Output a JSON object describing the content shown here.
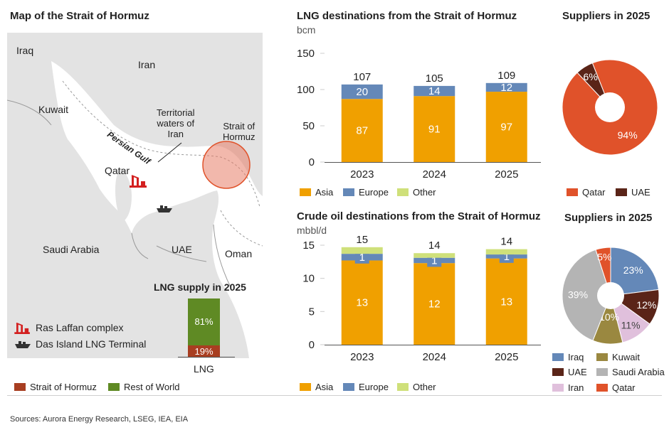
{
  "map": {
    "title": "Map of the Strait of Hormuz",
    "labels": {
      "iraq": "Iraq",
      "iran": "Iran",
      "kuwait": "Kuwait",
      "territorial": "Territorial\nwaters of\nIran",
      "strait": "Strait of\nHormuz",
      "gulf": "Persian Gulf",
      "qatar": "Qatar",
      "saudi": "Saudi Arabia",
      "uae": "UAE",
      "oman": "Oman"
    },
    "legend": {
      "ras_laffan": "Ras Laffan complex",
      "das_island": "Das Island LNG Terminal"
    }
  },
  "lng_supply": {
    "title": "LNG supply in 2025",
    "category": "LNG",
    "segments": [
      {
        "name": "Rest of World",
        "label": "81%",
        "value": 81,
        "color": "#5f8a24"
      },
      {
        "name": "Strait of Hormuz",
        "label": "19%",
        "value": 19,
        "color": "#a83e21"
      }
    ],
    "legend": [
      {
        "label": "Strait of Hormuz",
        "color": "#a83e21"
      },
      {
        "label": "Rest of World",
        "color": "#5f8a24"
      }
    ]
  },
  "chart_data": [
    {
      "id": "lng",
      "type": "bar",
      "title": "LNG destinations from the Strait of Hormuz",
      "unit": "bcm",
      "categories": [
        "2023",
        "2024",
        "2025"
      ],
      "yticks": [
        0,
        50,
        100,
        150
      ],
      "ylim": [
        0,
        150
      ],
      "totals": [
        107,
        105,
        109
      ],
      "series": [
        {
          "name": "Asia",
          "color": "#f0a000",
          "values": [
            87,
            91,
            97
          ],
          "labels": [
            "87",
            "91",
            "97"
          ]
        },
        {
          "name": "Europe",
          "color": "#6488b8",
          "values": [
            20,
            14,
            12
          ],
          "labels": [
            "20",
            "14",
            "12"
          ]
        },
        {
          "name": "Other",
          "color": "#cfe07a",
          "values": [
            0,
            0,
            0
          ],
          "labels": [
            "",
            "",
            ""
          ]
        }
      ]
    },
    {
      "id": "crude",
      "type": "bar",
      "title": "Crude oil destinations from the Strait of Hormuz",
      "unit": "mbbl/d",
      "categories": [
        "2023",
        "2024",
        "2025"
      ],
      "yticks": [
        0,
        5,
        10,
        15
      ],
      "ylim": [
        0,
        15
      ],
      "totals": [
        15,
        14,
        14
      ],
      "series": [
        {
          "name": "Asia",
          "color": "#f0a000",
          "values": [
            12.7,
            12.3,
            13.0
          ],
          "labels": [
            "13",
            "12",
            "13"
          ]
        },
        {
          "name": "Europe",
          "color": "#6488b8",
          "values": [
            1.0,
            0.8,
            0.6
          ],
          "labels": [
            "1",
            "1",
            "1"
          ]
        },
        {
          "name": "Other",
          "color": "#cfe07a",
          "values": [
            1.0,
            0.7,
            0.8
          ],
          "labels": [
            "",
            "",
            ""
          ]
        }
      ]
    },
    {
      "id": "lng_suppliers",
      "type": "pie",
      "title": "Suppliers in 2025",
      "slices": [
        {
          "name": "Qatar",
          "value": 94,
          "label": "94%",
          "color": "#e0522a"
        },
        {
          "name": "UAE",
          "value": 6,
          "label": "6%",
          "color": "#5a2418"
        }
      ]
    },
    {
      "id": "crude_suppliers",
      "type": "pie",
      "title": "Suppliers in 2025",
      "slices": [
        {
          "name": "Iraq",
          "value": 23,
          "label": "23%",
          "color": "#6488b8"
        },
        {
          "name": "UAE",
          "value": 12,
          "label": "12%",
          "color": "#5a2418"
        },
        {
          "name": "Iran",
          "value": 11,
          "label": "11%",
          "color": "#e0c0dc"
        },
        {
          "name": "Kuwait",
          "value": 10,
          "label": "10%",
          "color": "#9a8840"
        },
        {
          "name": "Saudi Arabia",
          "value": 39,
          "label": "39%",
          "color": "#b4b4b4"
        },
        {
          "name": "Qatar",
          "value": 5,
          "label": "5%",
          "color": "#e0522a"
        }
      ]
    }
  ],
  "sources": "Sources: Aurora Energy Research, LSEG, IEA, EIA"
}
